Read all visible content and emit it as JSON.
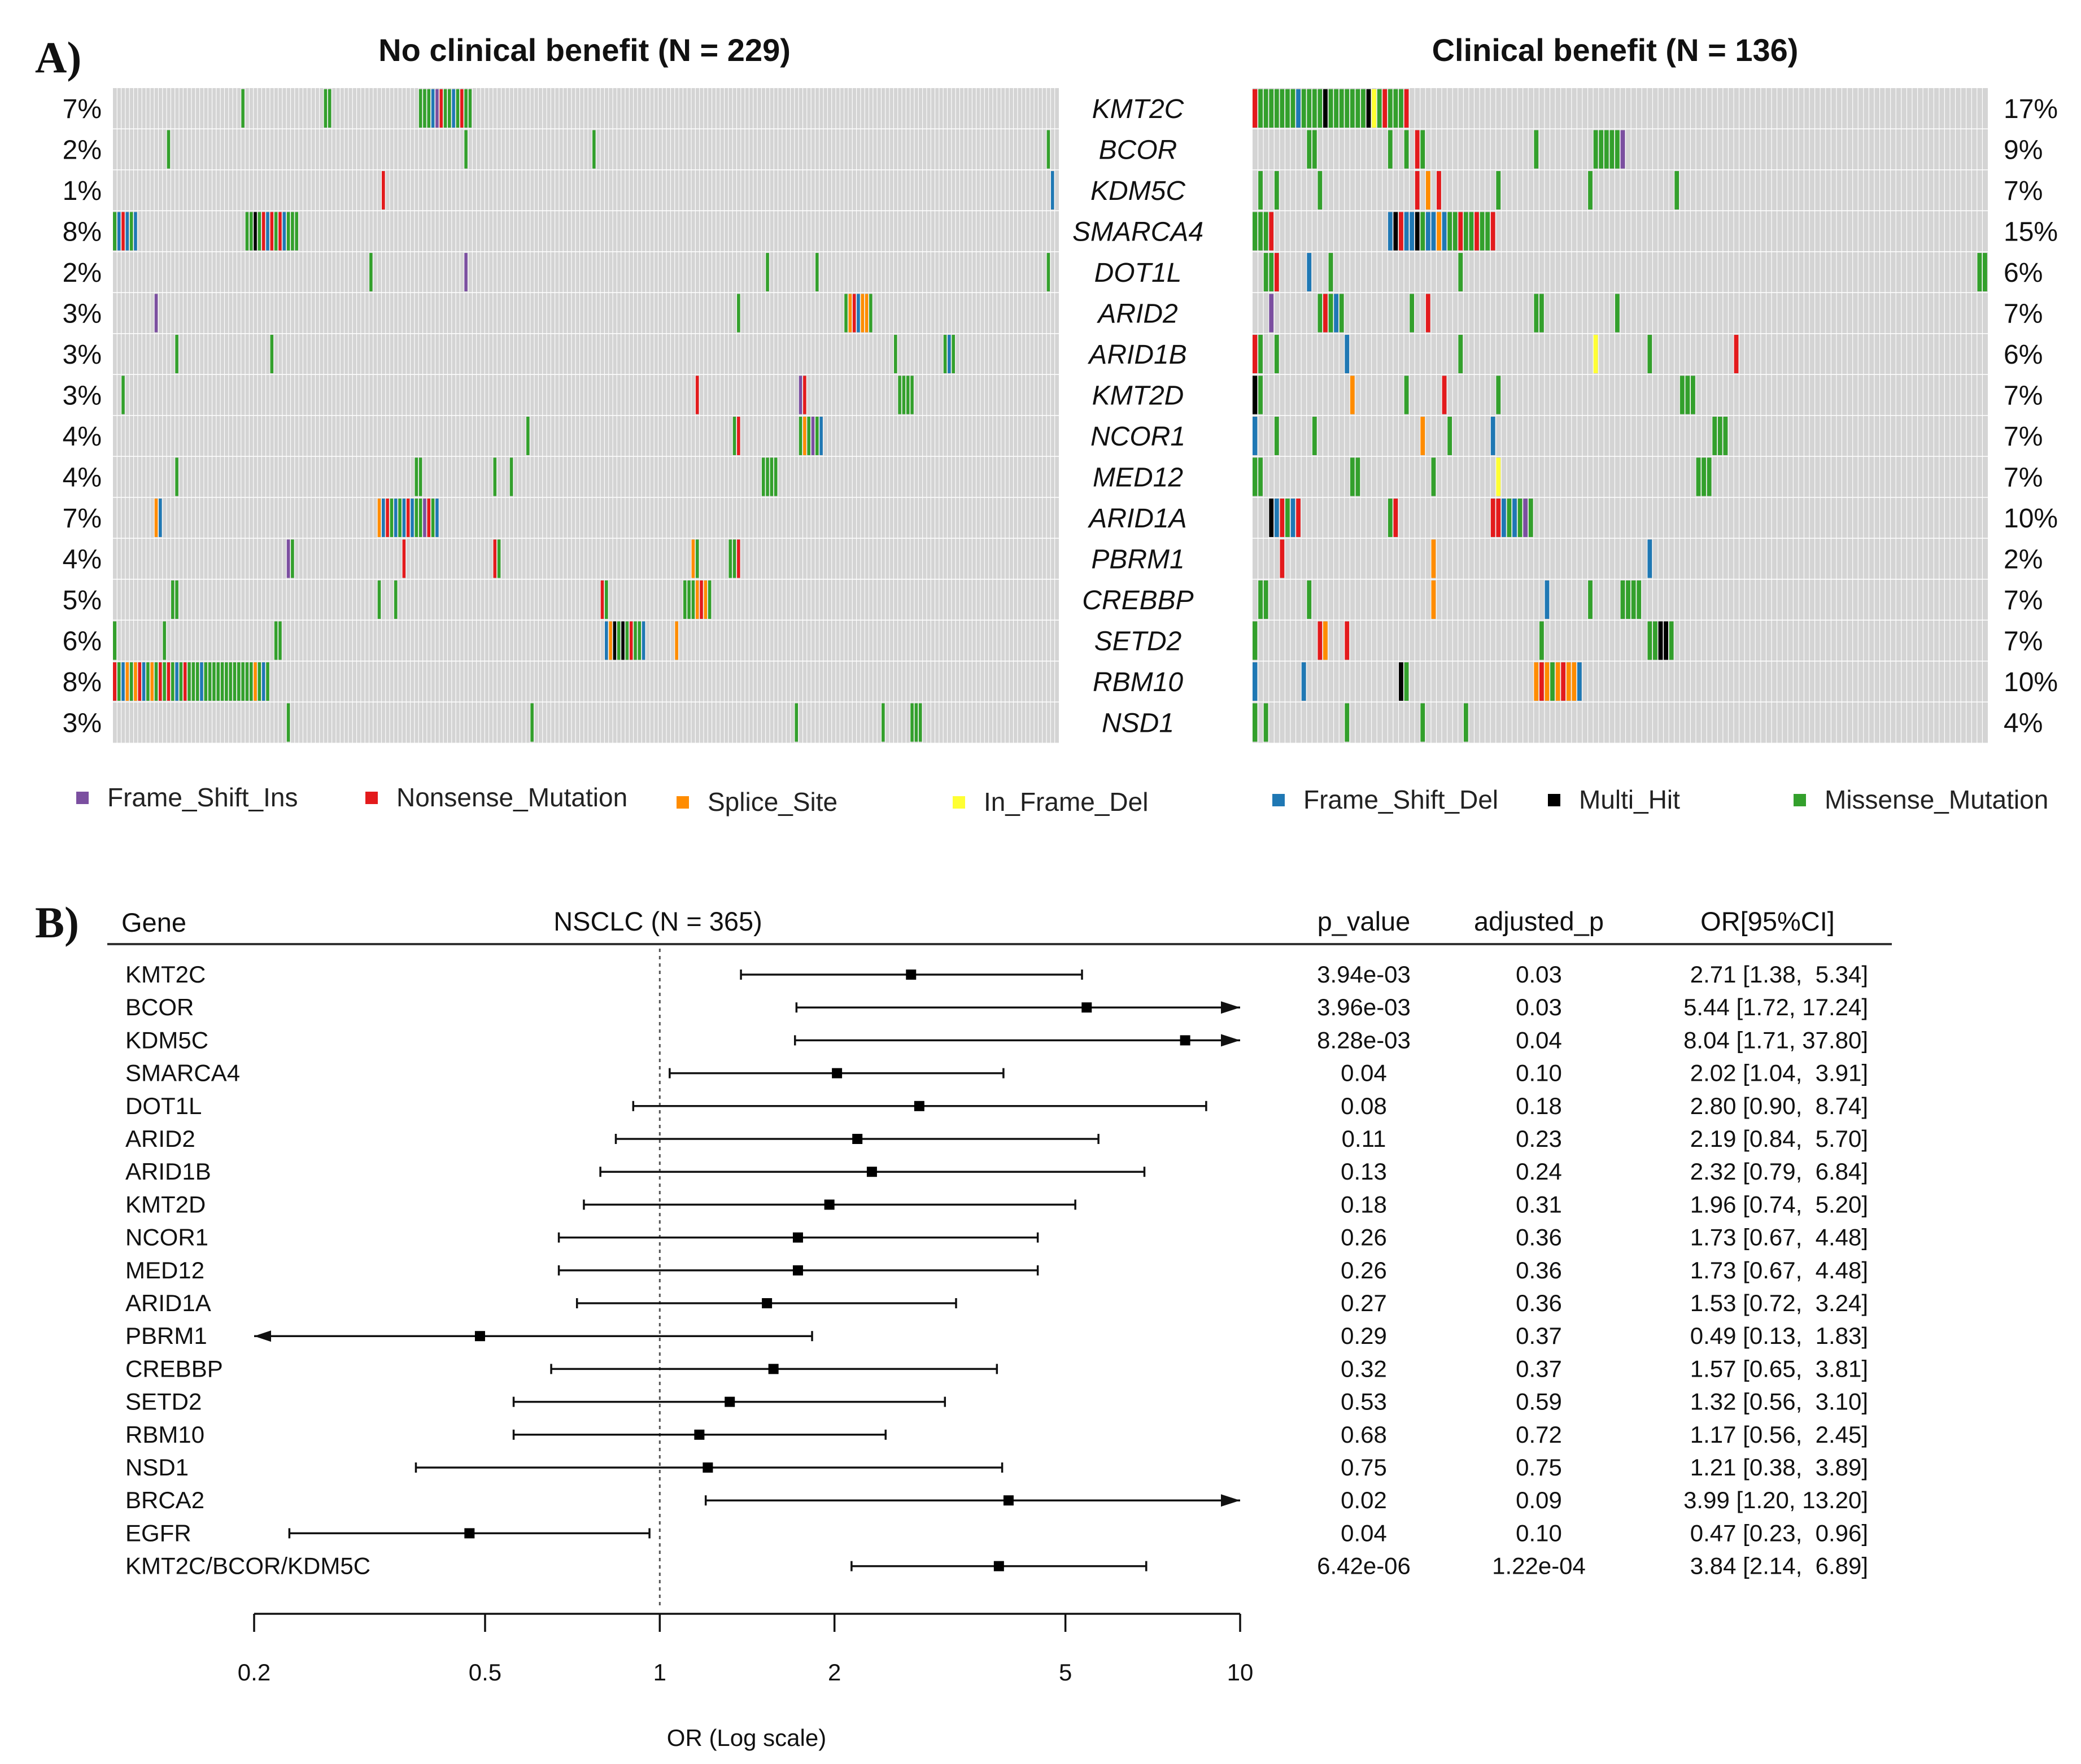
{
  "panel_a": {
    "label": "A)",
    "left_title": "No clinical benefit (N = 229)",
    "right_title": "Clinical benefit (N = 136)",
    "genes": [
      "KMT2C",
      "BCOR",
      "KDM5C",
      "SMARCA4",
      "DOT1L",
      "ARID2",
      "ARID1B",
      "KMT2D",
      "NCOR1",
      "MED12",
      "ARID1A",
      "PBRM1",
      "CREBBP",
      "SETD2",
      "RBM10",
      "NSD1"
    ],
    "left_pct": [
      "7%",
      "2%",
      "1%",
      "8%",
      "2%",
      "3%",
      "3%",
      "3%",
      "4%",
      "4%",
      "7%",
      "4%",
      "5%",
      "6%",
      "8%",
      "3%"
    ],
    "right_pct": [
      "17%",
      "9%",
      "7%",
      "15%",
      "6%",
      "7%",
      "6%",
      "7%",
      "7%",
      "7%",
      "10%",
      "2%",
      "7%",
      "7%",
      "10%",
      "4%"
    ],
    "background_color": "#d4d4d4",
    "legend": [
      {
        "label": "Frame_Shift_Ins",
        "color": "#7b4fa0"
      },
      {
        "label": "Nonsense_Mutation",
        "color": "#e31a1c"
      },
      {
        "label": "Splice_Site",
        "color": "#ff8c00"
      },
      {
        "label": "In_Frame_Del",
        "color": "#ffff33"
      },
      {
        "label": "Frame_Shift_Del",
        "color": "#1f78b4"
      },
      {
        "label": "Multi_Hit",
        "color": "#000000"
      },
      {
        "label": "Missense_Mutation",
        "color": "#33a02c"
      }
    ]
  },
  "chart_data": {
    "type": "forest",
    "title": "NSCLC (N = 365)",
    "panel_label": "B)",
    "headers": {
      "gene": "Gene",
      "p_value": "p_value",
      "adjusted_p": "adjusted_p",
      "or": "OR[95%CI]"
    },
    "xlabel": "OR (Log scale)",
    "xscale": "log",
    "xlim": [
      0.2,
      10
    ],
    "xticks": [
      0.2,
      0.5,
      1,
      2,
      5,
      10
    ],
    "xtick_labels": [
      "0.2",
      "0.5",
      "1",
      "2",
      "5",
      "10"
    ],
    "reference_line": 1,
    "rows": [
      {
        "gene": "KMT2C",
        "or": 2.71,
        "lo": 1.38,
        "hi": 5.34,
        "p": "3.94e-03",
        "adj": "0.03",
        "or_text": "2.71 [1.38,  5.34]"
      },
      {
        "gene": "BCOR",
        "or": 5.44,
        "lo": 1.72,
        "hi": 17.24,
        "p": "3.96e-03",
        "adj": "0.03",
        "or_text": "5.44 [1.72, 17.24]"
      },
      {
        "gene": "KDM5C",
        "or": 8.04,
        "lo": 1.71,
        "hi": 37.8,
        "p": "8.28e-03",
        "adj": "0.04",
        "or_text": "8.04 [1.71, 37.80]"
      },
      {
        "gene": "SMARCA4",
        "or": 2.02,
        "lo": 1.04,
        "hi": 3.91,
        "p": "0.04",
        "adj": "0.10",
        "or_text": "2.02 [1.04,  3.91]"
      },
      {
        "gene": "DOT1L",
        "or": 2.8,
        "lo": 0.9,
        "hi": 8.74,
        "p": "0.08",
        "adj": "0.18",
        "or_text": "2.80 [0.90,  8.74]"
      },
      {
        "gene": "ARID2",
        "or": 2.19,
        "lo": 0.84,
        "hi": 5.7,
        "p": "0.11",
        "adj": "0.23",
        "or_text": "2.19 [0.84,  5.70]"
      },
      {
        "gene": "ARID1B",
        "or": 2.32,
        "lo": 0.79,
        "hi": 6.84,
        "p": "0.13",
        "adj": "0.24",
        "or_text": "2.32 [0.79,  6.84]"
      },
      {
        "gene": "KMT2D",
        "or": 1.96,
        "lo": 0.74,
        "hi": 5.2,
        "p": "0.18",
        "adj": "0.31",
        "or_text": "1.96 [0.74,  5.20]"
      },
      {
        "gene": "NCOR1",
        "or": 1.73,
        "lo": 0.67,
        "hi": 4.48,
        "p": "0.26",
        "adj": "0.36",
        "or_text": "1.73 [0.67,  4.48]"
      },
      {
        "gene": "MED12",
        "or": 1.73,
        "lo": 0.67,
        "hi": 4.48,
        "p": "0.26",
        "adj": "0.36",
        "or_text": "1.73 [0.67,  4.48]"
      },
      {
        "gene": "ARID1A",
        "or": 1.53,
        "lo": 0.72,
        "hi": 3.24,
        "p": "0.27",
        "adj": "0.36",
        "or_text": "1.53 [0.72,  3.24]"
      },
      {
        "gene": "PBRM1",
        "or": 0.49,
        "lo": 0.13,
        "hi": 1.83,
        "p": "0.29",
        "adj": "0.37",
        "or_text": "0.49 [0.13,  1.83]"
      },
      {
        "gene": "CREBBP",
        "or": 1.57,
        "lo": 0.65,
        "hi": 3.81,
        "p": "0.32",
        "adj": "0.37",
        "or_text": "1.57 [0.65,  3.81]"
      },
      {
        "gene": "SETD2",
        "or": 1.32,
        "lo": 0.56,
        "hi": 3.1,
        "p": "0.53",
        "adj": "0.59",
        "or_text": "1.32 [0.56,  3.10]"
      },
      {
        "gene": "RBM10",
        "or": 1.17,
        "lo": 0.56,
        "hi": 2.45,
        "p": "0.68",
        "adj": "0.72",
        "or_text": "1.17 [0.56,  2.45]"
      },
      {
        "gene": "NSD1",
        "or": 1.21,
        "lo": 0.38,
        "hi": 3.89,
        "p": "0.75",
        "adj": "0.75",
        "or_text": "1.21 [0.38,  3.89]"
      },
      {
        "gene": "BRCA2",
        "or": 3.99,
        "lo": 1.2,
        "hi": 13.2,
        "p": "0.02",
        "adj": "0.09",
        "or_text": "3.99 [1.20, 13.20]"
      },
      {
        "gene": "EGFR",
        "or": 0.47,
        "lo": 0.23,
        "hi": 0.96,
        "p": "0.04",
        "adj": "0.10",
        "or_text": "0.47 [0.23,  0.96]"
      },
      {
        "gene": "KMT2C/BCOR/KDM5C",
        "or": 3.84,
        "lo": 2.14,
        "hi": 6.89,
        "p": "6.42e-06",
        "adj": "1.22e-04",
        "or_text": "3.84 [2.14,  6.89]"
      }
    ]
  }
}
